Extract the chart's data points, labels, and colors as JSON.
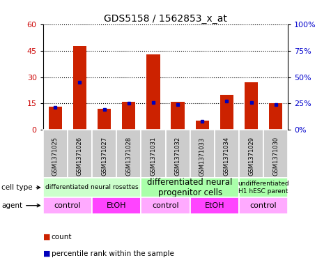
{
  "title": "GDS5158 / 1562853_x_at",
  "samples": [
    "GSM1371025",
    "GSM1371026",
    "GSM1371027",
    "GSM1371028",
    "GSM1371031",
    "GSM1371032",
    "GSM1371033",
    "GSM1371034",
    "GSM1371029",
    "GSM1371030"
  ],
  "counts": [
    13,
    48,
    12,
    16,
    43,
    16,
    5,
    20,
    27,
    15
  ],
  "percentile_ranks": [
    21,
    45,
    19,
    25,
    26,
    24,
    8,
    27,
    26,
    24
  ],
  "ylim_left": [
    0,
    60
  ],
  "ylim_right": [
    0,
    100
  ],
  "yticks_left": [
    0,
    15,
    30,
    45,
    60
  ],
  "yticks_right": [
    0,
    25,
    50,
    75,
    100
  ],
  "ytick_labels_right": [
    "0%",
    "25%",
    "50%",
    "75%",
    "100%"
  ],
  "bar_color": "#cc2200",
  "dot_color": "#0000bb",
  "cell_type_groups": [
    {
      "label": "differentiated neural rosettes",
      "start": 0,
      "end": 4,
      "color": "#ccffcc",
      "fontsize": 6.5
    },
    {
      "label": "differentiated neural\nprogenitor cells",
      "start": 4,
      "end": 8,
      "color": "#aaffaa",
      "fontsize": 8.5
    },
    {
      "label": "undifferentiated\nH1 hESC parent",
      "start": 8,
      "end": 10,
      "color": "#aaffaa",
      "fontsize": 6.5
    }
  ],
  "agent_groups": [
    {
      "label": "control",
      "start": 0,
      "end": 2,
      "color": "#ffaaff"
    },
    {
      "label": "EtOH",
      "start": 2,
      "end": 4,
      "color": "#ff44ff"
    },
    {
      "label": "control",
      "start": 4,
      "end": 6,
      "color": "#ffaaff"
    },
    {
      "label": "EtOH",
      "start": 6,
      "end": 8,
      "color": "#ff44ff"
    },
    {
      "label": "control",
      "start": 8,
      "end": 10,
      "color": "#ffaaff"
    }
  ],
  "sample_bg_color": "#cccccc",
  "bg_color": "#ffffff",
  "tick_label_color_left": "#cc0000",
  "tick_label_color_right": "#0000cc"
}
